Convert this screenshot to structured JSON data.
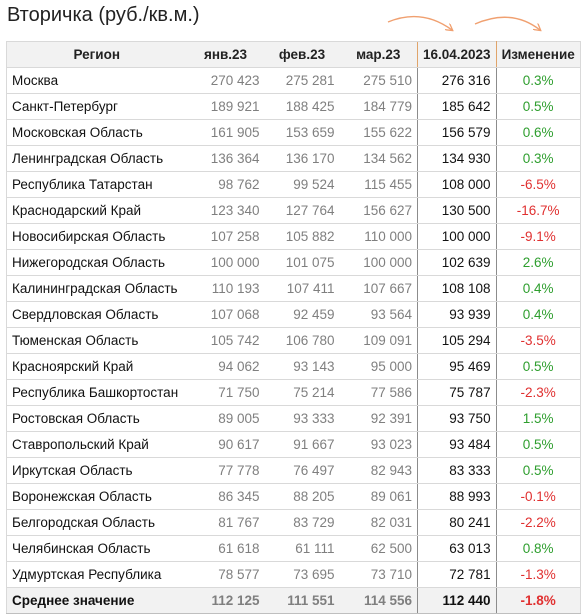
{
  "title": "Вторичка (руб./кв.м.)",
  "columns": [
    "Регион",
    "янв.23",
    "фев.23",
    "мар.23",
    "16.04.2023",
    "Изменение"
  ],
  "rows": [
    {
      "region": "Москва",
      "jan": "270 423",
      "feb": "275 281",
      "mar": "275 510",
      "cur": "276 316",
      "chg": "0.3%",
      "dir": "pos"
    },
    {
      "region": "Санкт-Петербург",
      "jan": "189 921",
      "feb": "188 425",
      "mar": "184 779",
      "cur": "185 642",
      "chg": "0.5%",
      "dir": "pos"
    },
    {
      "region": "Московская Область",
      "jan": "161 905",
      "feb": "153 659",
      "mar": "155 622",
      "cur": "156 579",
      "chg": "0.6%",
      "dir": "pos"
    },
    {
      "region": "Ленинградская Область",
      "jan": "136 364",
      "feb": "136 170",
      "mar": "134 562",
      "cur": "134 930",
      "chg": "0.3%",
      "dir": "pos"
    },
    {
      "region": "Республика Татарстан",
      "jan": "98 762",
      "feb": "99 524",
      "mar": "115 455",
      "cur": "108 000",
      "chg": "-6.5%",
      "dir": "neg"
    },
    {
      "region": "Краснодарский Край",
      "jan": "123 340",
      "feb": "127 764",
      "mar": "156 627",
      "cur": "130 500",
      "chg": "-16.7%",
      "dir": "neg"
    },
    {
      "region": "Новосибирская Область",
      "jan": "107 258",
      "feb": "105 882",
      "mar": "110 000",
      "cur": "100 000",
      "chg": "-9.1%",
      "dir": "neg"
    },
    {
      "region": "Нижегородская Область",
      "jan": "100 000",
      "feb": "101 075",
      "mar": "100 000",
      "cur": "102 639",
      "chg": "2.6%",
      "dir": "pos"
    },
    {
      "region": "Калининградская Область",
      "jan": "110 193",
      "feb": "107 411",
      "mar": "107 667",
      "cur": "108 108",
      "chg": "0.4%",
      "dir": "pos"
    },
    {
      "region": "Свердловская Область",
      "jan": "107 068",
      "feb": "92 459",
      "mar": "93 564",
      "cur": "93 939",
      "chg": "0.4%",
      "dir": "pos"
    },
    {
      "region": "Тюменская Область",
      "jan": "105 742",
      "feb": "106 780",
      "mar": "109 091",
      "cur": "105 294",
      "chg": "-3.5%",
      "dir": "neg"
    },
    {
      "region": "Красноярский Край",
      "jan": "94 062",
      "feb": "93 143",
      "mar": "95 000",
      "cur": "95 469",
      "chg": "0.5%",
      "dir": "pos"
    },
    {
      "region": "Республика Башкортостан",
      "jan": "71 750",
      "feb": "75 214",
      "mar": "77 586",
      "cur": "75 787",
      "chg": "-2.3%",
      "dir": "neg"
    },
    {
      "region": "Ростовская Область",
      "jan": "89 005",
      "feb": "93 333",
      "mar": "92 391",
      "cur": "93 750",
      "chg": "1.5%",
      "dir": "pos"
    },
    {
      "region": "Ставропольский Край",
      "jan": "90 617",
      "feb": "91 667",
      "mar": "93 023",
      "cur": "93 484",
      "chg": "0.5%",
      "dir": "pos"
    },
    {
      "region": "Иркутская Область",
      "jan": "77 778",
      "feb": "76 497",
      "mar": "82 943",
      "cur": "83 333",
      "chg": "0.5%",
      "dir": "pos"
    },
    {
      "region": "Воронежская Область",
      "jan": "86 345",
      "feb": "88 205",
      "mar": "89 061",
      "cur": "88 993",
      "chg": "-0.1%",
      "dir": "neg"
    },
    {
      "region": "Белгородская Область",
      "jan": "81 767",
      "feb": "83 729",
      "mar": "82 031",
      "cur": "80 241",
      "chg": "-2.2%",
      "dir": "neg"
    },
    {
      "region": "Челябинская Область",
      "jan": "61 618",
      "feb": "61 111",
      "mar": "62 500",
      "cur": "63 013",
      "chg": "0.8%",
      "dir": "pos"
    },
    {
      "region": "Удмуртская Республика",
      "jan": "78 577",
      "feb": "73 695",
      "mar": "73 710",
      "cur": "72 781",
      "chg": "-1.3%",
      "dir": "neg"
    }
  ],
  "average": {
    "label": "Среднее значение",
    "jan": "112 125",
    "feb": "111 551",
    "mar": "114 556",
    "cur": "112 440",
    "chg": "-1.8%",
    "dir": "neg"
  },
  "colors": {
    "positive": "#2e9e2e",
    "negative": "#e03030",
    "highlight": "#fbd6b4",
    "arrow": "#f0a070"
  }
}
